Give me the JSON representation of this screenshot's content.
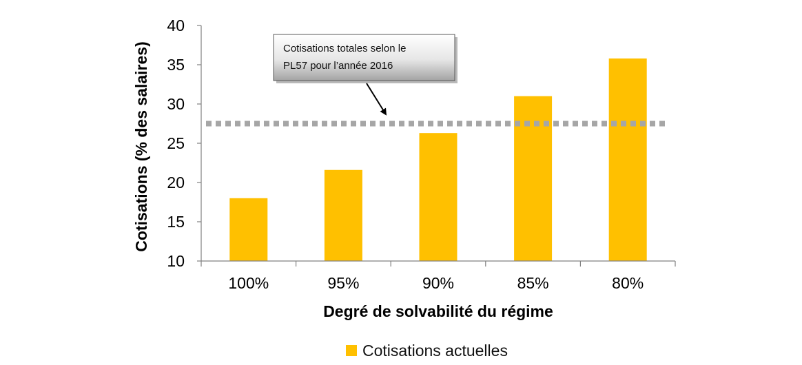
{
  "chart_data": {
    "type": "bar",
    "categories": [
      "100%",
      "95%",
      "90%",
      "85%",
      "80%"
    ],
    "series": [
      {
        "name": "Cotisations actuelles",
        "values": [
          18.0,
          21.6,
          26.3,
          31.0,
          35.8
        ],
        "color": "#FFC000"
      }
    ],
    "xlabel": "Degré de solvabilité du régime",
    "ylabel": "Cotisations (% des salaires)",
    "ylim": [
      10,
      40
    ],
    "yticks": [
      "10",
      "15",
      "20",
      "25",
      "30",
      "35",
      "40"
    ],
    "reference_line": {
      "value": 27.5,
      "style": "dotted",
      "color": "#A6A6A6"
    },
    "annotation": {
      "lines": [
        "Cotisations totales selon le",
        "PL57 pour l’année 2016"
      ]
    },
    "grid": false,
    "legend": {
      "position": "bottom",
      "label": "Cotisations actuelles"
    }
  }
}
